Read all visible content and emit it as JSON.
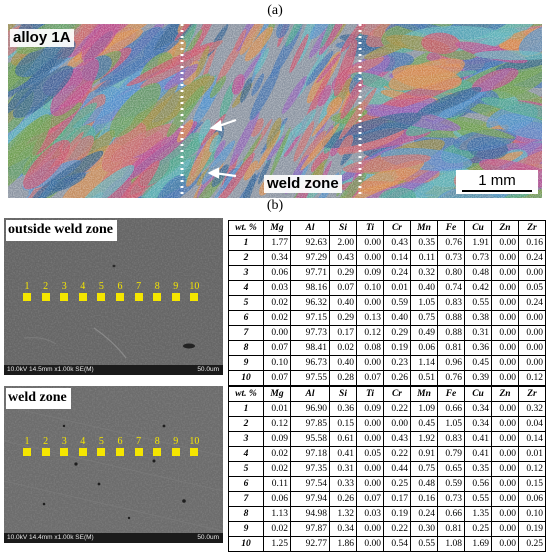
{
  "panel_a": {
    "label": "(a)",
    "left_tag": "alloy 1A",
    "weld_tag": "weld zone",
    "scale_text": "1 mm"
  },
  "panel_b": {
    "label": "(b)",
    "panels": [
      {
        "title": "outside weld zone",
        "info_left": "10.0kV 14.5mm x1.00k SE(M)",
        "info_right": "50.0um",
        "points": [
          "1",
          "2",
          "3",
          "4",
          "5",
          "6",
          "7",
          "8",
          "9",
          "10"
        ]
      },
      {
        "title": "weld zone",
        "info_left": "10.0kV 14.4mm x1.00k SE(M)",
        "info_right": "50.0um",
        "points": [
          "1",
          "2",
          "3",
          "4",
          "5",
          "6",
          "7",
          "8",
          "9",
          "10"
        ]
      }
    ],
    "columns": [
      "wt. %",
      "Mg",
      "Al",
      "Si",
      "Ti",
      "Cr",
      "Mn",
      "Fe",
      "Cu",
      "Zn",
      "Zr"
    ],
    "tables": [
      [
        [
          "1",
          "1.77",
          "92.63",
          "2.00",
          "0.00",
          "0.43",
          "0.35",
          "0.76",
          "1.91",
          "0.00",
          "0.16"
        ],
        [
          "2",
          "0.34",
          "97.29",
          "0.43",
          "0.00",
          "0.14",
          "0.11",
          "0.73",
          "0.73",
          "0.00",
          "0.24"
        ],
        [
          "3",
          "0.06",
          "97.71",
          "0.29",
          "0.09",
          "0.24",
          "0.32",
          "0.80",
          "0.48",
          "0.00",
          "0.00"
        ],
        [
          "4",
          "0.03",
          "98.16",
          "0.07",
          "0.10",
          "0.01",
          "0.40",
          "0.74",
          "0.42",
          "0.00",
          "0.05"
        ],
        [
          "5",
          "0.02",
          "96.32",
          "0.40",
          "0.00",
          "0.59",
          "1.05",
          "0.83",
          "0.55",
          "0.00",
          "0.24"
        ],
        [
          "6",
          "0.02",
          "97.15",
          "0.29",
          "0.13",
          "0.40",
          "0.75",
          "0.88",
          "0.38",
          "0.00",
          "0.00"
        ],
        [
          "7",
          "0.00",
          "97.73",
          "0.17",
          "0.12",
          "0.29",
          "0.49",
          "0.88",
          "0.31",
          "0.00",
          "0.00"
        ],
        [
          "8",
          "0.07",
          "98.41",
          "0.02",
          "0.08",
          "0.19",
          "0.06",
          "0.81",
          "0.36",
          "0.00",
          "0.00"
        ],
        [
          "9",
          "0.10",
          "96.73",
          "0.40",
          "0.00",
          "0.23",
          "1.14",
          "0.96",
          "0.45",
          "0.00",
          "0.00"
        ],
        [
          "10",
          "0.07",
          "97.55",
          "0.28",
          "0.07",
          "0.26",
          "0.51",
          "0.76",
          "0.39",
          "0.00",
          "0.12"
        ]
      ],
      [
        [
          "1",
          "0.01",
          "96.90",
          "0.36",
          "0.09",
          "0.22",
          "1.09",
          "0.66",
          "0.34",
          "0.00",
          "0.32"
        ],
        [
          "2",
          "0.12",
          "97.85",
          "0.15",
          "0.00",
          "0.00",
          "0.45",
          "1.05",
          "0.34",
          "0.00",
          "0.04"
        ],
        [
          "3",
          "0.09",
          "95.58",
          "0.61",
          "0.00",
          "0.43",
          "1.92",
          "0.83",
          "0.41",
          "0.00",
          "0.14"
        ],
        [
          "4",
          "0.02",
          "97.18",
          "0.41",
          "0.05",
          "0.22",
          "0.91",
          "0.79",
          "0.41",
          "0.00",
          "0.01"
        ],
        [
          "5",
          "0.02",
          "97.35",
          "0.31",
          "0.00",
          "0.44",
          "0.75",
          "0.65",
          "0.35",
          "0.00",
          "0.12"
        ],
        [
          "6",
          "0.11",
          "97.54",
          "0.33",
          "0.00",
          "0.25",
          "0.48",
          "0.59",
          "0.56",
          "0.00",
          "0.15"
        ],
        [
          "7",
          "0.06",
          "97.94",
          "0.26",
          "0.07",
          "0.17",
          "0.16",
          "0.73",
          "0.55",
          "0.00",
          "0.06"
        ],
        [
          "8",
          "1.13",
          "94.98",
          "1.32",
          "0.03",
          "0.19",
          "0.24",
          "0.66",
          "1.35",
          "0.00",
          "0.10"
        ],
        [
          "9",
          "0.02",
          "97.87",
          "0.34",
          "0.00",
          "0.22",
          "0.30",
          "0.81",
          "0.25",
          "0.00",
          "0.19"
        ],
        [
          "10",
          "1.25",
          "92.77",
          "1.86",
          "0.00",
          "0.54",
          "0.55",
          "1.08",
          "1.69",
          "0.00",
          "0.25"
        ]
      ]
    ]
  }
}
